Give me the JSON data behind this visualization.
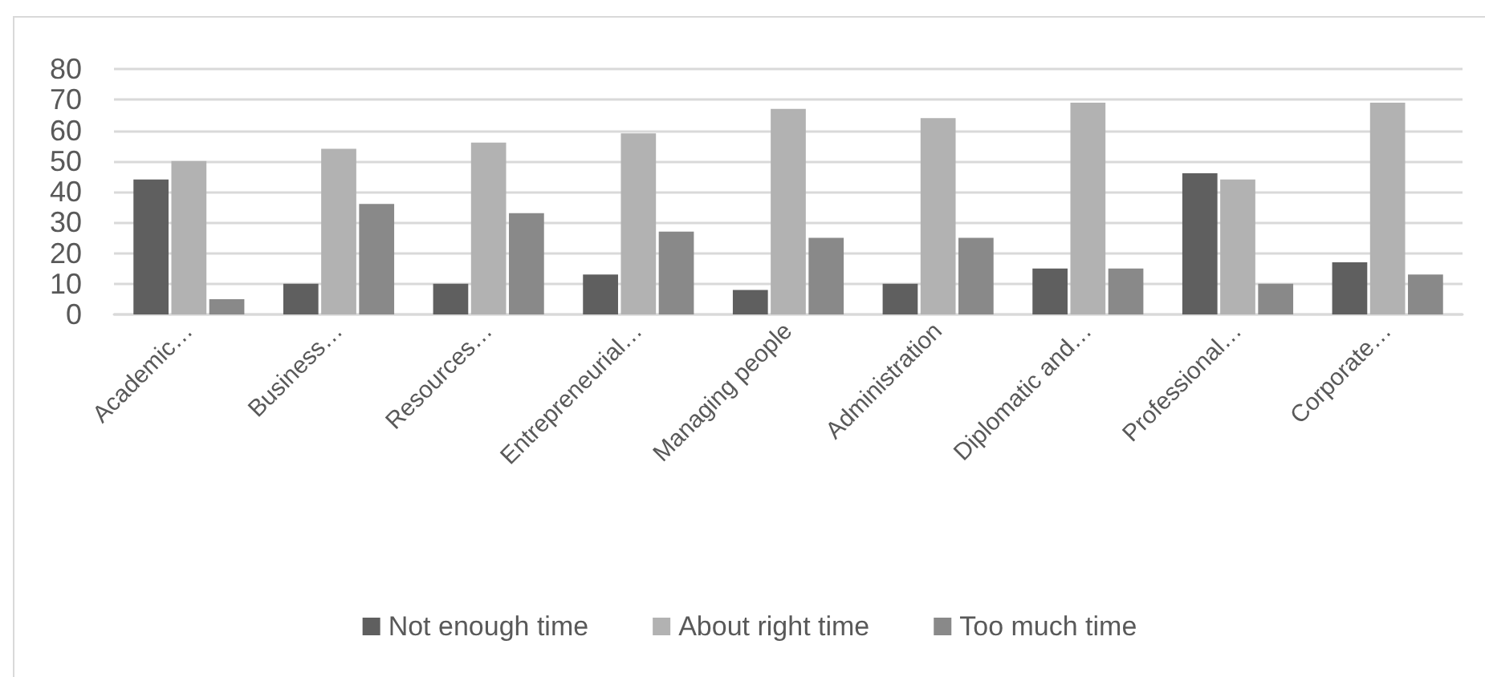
{
  "chart_data": {
    "type": "bar",
    "categories": [
      "Academic…",
      "Business…",
      "Resources…",
      "Entrepreneurial…",
      "Managing people",
      "Administration",
      "Diplomatic and…",
      "Professional…",
      "Corporate…"
    ],
    "series": [
      {
        "name": "Not enough time",
        "color": "#5f5f5f",
        "values": [
          44,
          10,
          10,
          13,
          8,
          10,
          15,
          46,
          17
        ]
      },
      {
        "name": "About right time",
        "color": "#b2b2b2",
        "values": [
          50,
          54,
          56,
          59,
          67,
          64,
          69,
          44,
          69
        ]
      },
      {
        "name": "Too much time",
        "color": "#898989",
        "values": [
          5,
          36,
          33,
          27,
          25,
          25,
          15,
          10,
          13
        ]
      }
    ],
    "ylim": [
      0,
      80
    ],
    "yticks": [
      0,
      10,
      20,
      30,
      40,
      50,
      60,
      70,
      80
    ],
    "grid": "y",
    "legend": "bottom"
  }
}
